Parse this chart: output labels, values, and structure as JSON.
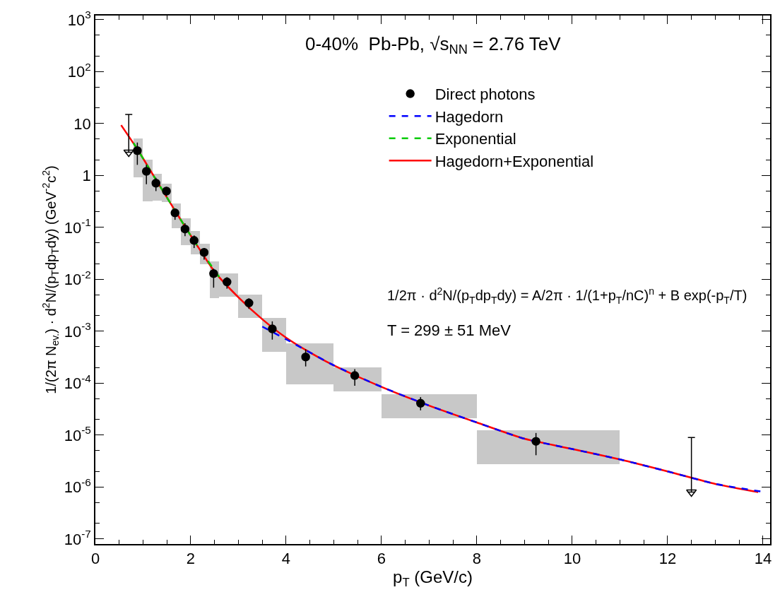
{
  "chart_data": {
    "type": "scatter",
    "annotations": [
      "0-40%  Pb-Pb, √s$_{NN}$ = 2.76 TeV",
      "1/2π · d$^{2}$N/(p$_{T}$dp$_{T}$dy) = A/2π · 1/(1+p$_{T}$/nC)$^{n}$ + B exp(-p$_{T}$/T)",
      "T = 299 ± 51 MeV"
    ],
    "xlabel": "p$_{T}$ (GeV/c)",
    "ylabel": "1/(2π N$_{ev.}$) · d$^{2}$N/(p$_{T}$dp$_{T}$dy) (GeV$^{-2}$c$^{2}$)",
    "log": "y",
    "legend": "top right",
    "xlim": [
      0,
      14.15
    ],
    "xticks": [
      0,
      2,
      4,
      6,
      8,
      10,
      12,
      14
    ],
    "ylim": [
      8e-08,
      1200
    ],
    "yticks": [
      {
        "value": 1e-07,
        "label": "10$^{-7}$"
      },
      {
        "value": 1e-06,
        "label": "10$^{-6}$"
      },
      {
        "value": 1e-05,
        "label": "10$^{-5}$"
      },
      {
        "value": 0.0001,
        "label": "10$^{-4}$"
      },
      {
        "value": 0.001,
        "label": "10$^{-3}$"
      },
      {
        "value": 0.01,
        "label": "10$^{-2}$"
      },
      {
        "value": 0.1,
        "label": "10$^{-1}$"
      },
      1,
      10,
      {
        "value": 100,
        "label": "10$^{2}$"
      },
      {
        "value": 1000,
        "label": "10$^{3}$"
      }
    ],
    "series": [
      {
        "type": "bar",
        "color": "#c8c8c8",
        "x": [
          0.9,
          1.1,
          1.3,
          1.5,
          1.7,
          1.9,
          2.1,
          2.3,
          2.5,
          2.8,
          3.25,
          3.75,
          4.5,
          5.5,
          7,
          9.5
        ],
        "xerrors": [
          0.1,
          0.1,
          0.1,
          0.1,
          0.1,
          0.1,
          0.1,
          0.1,
          0.1,
          0.2,
          0.25,
          0.25,
          0.5,
          0.5,
          1,
          1.5
        ],
        "base": [
          0.93,
          0.32,
          0.33,
          0.31,
          0.096,
          0.045,
          0.03,
          0.0195,
          0.0043,
          0.0046,
          0.00183,
          0.0004,
          9.6e-05,
          6.9e-05,
          2.1e-05,
          2.8e-06
        ],
        "values": [
          4.13,
          1.68,
          0.74,
          0.37,
          0.187,
          0.1,
          0.053,
          0.0285,
          0.0177,
          0.008,
          0.00317,
          0.00135,
          0.000474,
          0.000131,
          4e-05,
          9.6e-06
        ]
      },
      {
        "type": "line",
        "name": "Hagedorn+Exponential",
        "color": "#ff0000",
        "line_style": "solid",
        "marker": "none",
        "x": [
          0.54,
          0.9,
          1.3,
          1.7,
          2.1,
          2.5,
          3.0,
          3.5,
          4.0,
          4.5,
          5,
          6,
          7,
          8,
          9,
          10,
          11,
          12,
          13,
          13.9
        ],
        "values": [
          9.3,
          3.0,
          0.75,
          0.19,
          0.05,
          0.014,
          0.0045,
          0.0017,
          0.00075,
          0.00039,
          0.00022,
          8.5e-05,
          3.7e-05,
          1.75e-05,
          8.5e-06,
          5.4e-06,
          3.4e-06,
          2e-06,
          1.15e-06,
          8e-07
        ]
      },
      {
        "type": "line",
        "name": "Hagedorn",
        "color": "#0000ff",
        "line_style": "dashed",
        "marker": "none",
        "x": [
          3.5,
          4.0,
          4.5,
          5,
          6,
          7,
          8,
          9,
          10,
          11,
          12,
          13,
          14
        ],
        "values": [
          0.00123,
          0.0007,
          0.00039,
          0.00022,
          8.5e-05,
          3.7e-05,
          1.75e-05,
          8.5e-06,
          5.4e-06,
          3.4e-06,
          2e-06,
          1.15e-06,
          8.1e-07
        ]
      },
      {
        "type": "line",
        "name": "Exponential",
        "color": "#00cc00",
        "line_style": "dashed",
        "marker": "none",
        "x": [
          0.8,
          0.9,
          1.3,
          1.7,
          2.1,
          2.6
        ],
        "values": [
          4.2,
          3.0,
          0.75,
          0.19,
          0.05,
          0.011
        ]
      },
      {
        "type": "scatter",
        "color": "#000000",
        "marker": "triangle",
        "x": [
          0.7,
          12.5
        ],
        "values": [
          2.8,
          8e-07
        ],
        "errors": [
          [
            2.8,
            15
          ],
          [
            8e-07,
            9e-06
          ]
        ]
      },
      {
        "name": "Direct photons",
        "color": "#000000",
        "marker": "circle",
        "x": [
          0.88,
          1.07,
          1.27,
          1.49,
          1.67,
          1.88,
          2.07,
          2.28,
          2.48,
          2.76,
          3.22,
          3.71,
          4.41,
          5.44,
          6.82,
          9.24
        ],
        "values": [
          3.0,
          1.2,
          0.71,
          0.5,
          0.19,
          0.093,
          0.056,
          0.033,
          0.0129,
          0.0089,
          0.0035,
          0.00111,
          0.00032,
          0.00014,
          4.1e-05,
          7.6e-06
        ],
        "errors": [
          [
            1.6,
            4.3
          ],
          [
            0.68,
            1.6
          ],
          [
            0.5,
            0.9
          ],
          [
            0.4,
            0.6
          ],
          [
            0.14,
            0.23
          ],
          [
            0.068,
            0.12
          ],
          [
            0.04,
            0.07
          ],
          [
            0.024,
            0.04
          ],
          [
            0.0069,
            0.016
          ],
          [
            0.0066,
            0.011
          ],
          [
            0.0027,
            0.0043
          ],
          [
            0.00069,
            0.00155
          ],
          [
            0.00021,
            0.00045
          ],
          [
            8.9e-05,
            0.000187
          ],
          [
            3e-05,
            5.4e-05
          ],
          [
            4.1e-06,
            1.1e-05
          ]
        ]
      }
    ]
  }
}
